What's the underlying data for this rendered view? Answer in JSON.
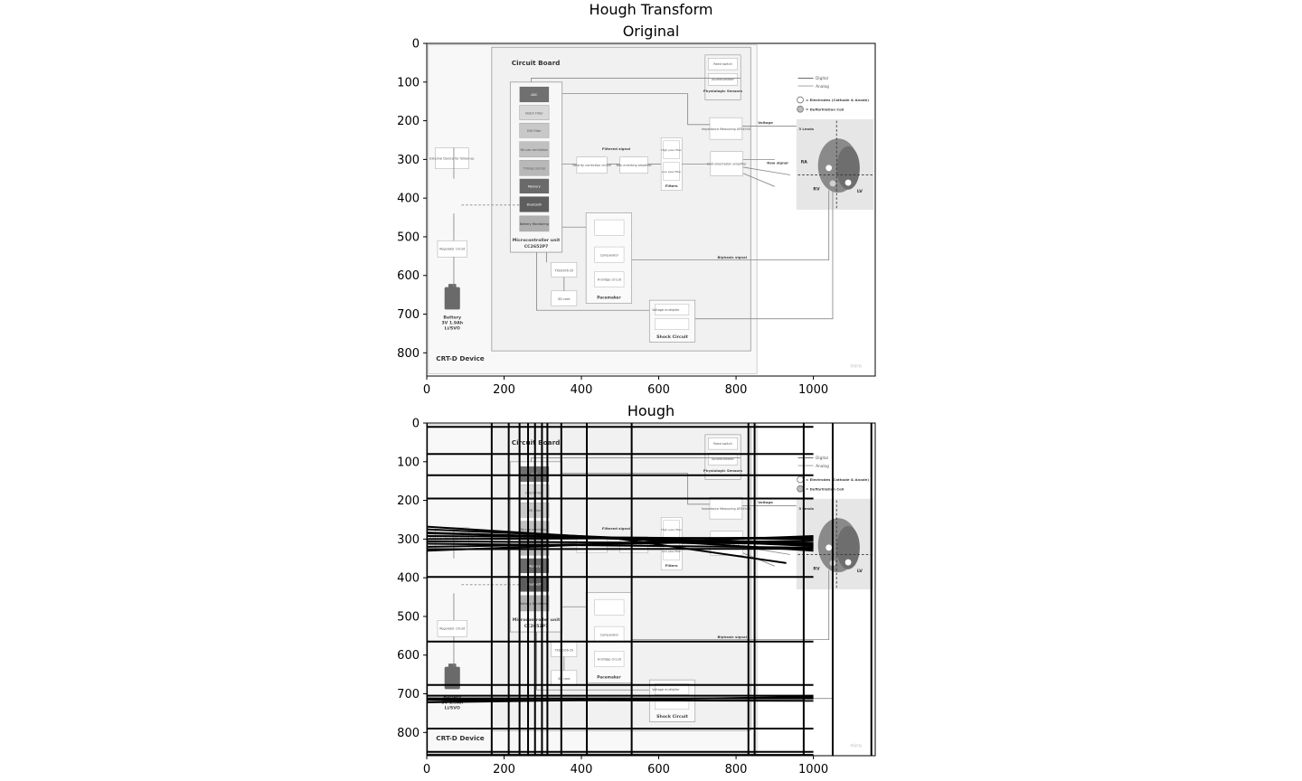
{
  "figure": {
    "suptitle": "Hough Transform"
  },
  "chart_data": [
    {
      "type": "image",
      "title": "Original",
      "xlim": [
        0,
        1160
      ],
      "ylim": [
        860,
        0
      ],
      "x_ticks": [
        0,
        200,
        400,
        600,
        800,
        1000
      ],
      "y_ticks": [
        0,
        100,
        200,
        300,
        400,
        500,
        600,
        700,
        800
      ],
      "image_text": {
        "circuit_board": "Circuit Board",
        "device": "CRT-D Device",
        "legend_digital": "Digital",
        "legend_analog": "Analog",
        "legend_electrodes": "= Electrodes (Cathode & Anode)",
        "legend_coil": "= Defibrillation Coil",
        "mcu_blocks": [
          "ADC",
          "Notch Filter",
          "EMI Filter",
          "Minute ventilation",
          "Timing control",
          "Memory",
          "Bluetooth",
          "Battery Monitoring"
        ],
        "mcu_label": "Microcontroller unit",
        "mcu_part": "CC2652P7",
        "reed_switch": "Reed switch",
        "accelerometer": "Accelerometer",
        "physiologic": "Physiologic Sensors",
        "impedance": "Impedance Measuring AFE4500",
        "voltage": "Voltage",
        "leads": "3 Leads",
        "filtered_signal": "Filtered signal",
        "high_pass": "High pass filter",
        "low_pass": "Low pass filter",
        "filters": "Filters",
        "polarity": "Polarity correction circuit",
        "non_inverting": "Non-inverting amplifier",
        "instrumentation": "Instrumentation amplifier",
        "raw_signal": "Raw signal",
        "external_device": "External Device for follow-up",
        "regulator": "Regulator circuit",
        "battery_title": "Battery",
        "battery_spec": "3V 1.9Ah",
        "battery_chem": "Li/SVO",
        "voltage_multiplier": "Voltage multiplier",
        "comparator": "Comparator",
        "h_bridge": "H-bridge circuit",
        "pacemaker": "Pacemaker",
        "txs": "TXS0206-29",
        "sd_card": "SD card",
        "biphasic": "Biphasic signal",
        "shock": "Shock Circuit",
        "ra": "RA",
        "rv": "RV",
        "lv": "LV",
        "watermark": "miro"
      }
    },
    {
      "type": "image",
      "title": "Hough",
      "xlim": [
        0,
        1160
      ],
      "ylim": [
        860,
        0
      ],
      "x_ticks": [
        0,
        200,
        400,
        600,
        800,
        1000
      ],
      "y_ticks": [
        0,
        100,
        200,
        300,
        400,
        500,
        600,
        700,
        800
      ],
      "vertical_lines_x": [
        0,
        168,
        212,
        240,
        262,
        280,
        298,
        312,
        348,
        414,
        530,
        832,
        848,
        975,
        1050,
        1150
      ],
      "horizontal_lines": [
        {
          "x": [
            0,
            1000
          ],
          "y": [
            10,
            10
          ]
        },
        {
          "x": [
            0,
            1000
          ],
          "y": [
            80,
            80
          ]
        },
        {
          "x": [
            0,
            1000
          ],
          "y": [
            135,
            135
          ]
        },
        {
          "x": [
            0,
            1000
          ],
          "y": [
            195,
            195
          ]
        },
        {
          "x": [
            0,
            1000
          ],
          "y": [
            398,
            398
          ]
        },
        {
          "x": [
            0,
            1000
          ],
          "y": [
            565,
            565
          ]
        },
        {
          "x": [
            0,
            1000
          ],
          "y": [
            677,
            677
          ]
        },
        {
          "x": [
            0,
            1000
          ],
          "y": [
            705,
            705
          ]
        },
        {
          "x": [
            0,
            1000
          ],
          "y": [
            712,
            712
          ]
        },
        {
          "x": [
            0,
            1000
          ],
          "y": [
            790,
            790
          ]
        },
        {
          "x": [
            0,
            1000
          ],
          "y": [
            850,
            850
          ]
        },
        {
          "x": [
            0,
            1000
          ],
          "y": [
            858,
            858
          ]
        }
      ],
      "oblique_lines": [
        {
          "x": [
            0,
            1000
          ],
          "y": [
            268,
            330
          ]
        },
        {
          "x": [
            0,
            1000
          ],
          "y": [
            275,
            318
          ]
        },
        {
          "x": [
            0,
            1000
          ],
          "y": [
            285,
            310
          ]
        },
        {
          "x": [
            0,
            1000
          ],
          "y": [
            292,
            300
          ]
        },
        {
          "x": [
            0,
            1000
          ],
          "y": [
            300,
            296
          ]
        },
        {
          "x": [
            0,
            1000
          ],
          "y": [
            306,
            312
          ]
        },
        {
          "x": [
            0,
            1000
          ],
          "y": [
            312,
            322
          ]
        },
        {
          "x": [
            0,
            1000
          ],
          "y": [
            320,
            304
          ]
        },
        {
          "x": [
            0,
            1000
          ],
          "y": [
            330,
            292
          ]
        },
        {
          "x": [
            0,
            1000
          ],
          "y": [
            326,
            325
          ]
        },
        {
          "x": [
            0,
            1000
          ],
          "y": [
            283,
            316
          ]
        },
        {
          "x": [
            500,
            930
          ],
          "y": [
            300,
            362
          ]
        },
        {
          "x": [
            0,
            1000
          ],
          "y": [
            722,
            708
          ]
        },
        {
          "x": [
            0,
            1000
          ],
          "y": [
            716,
            718
          ]
        }
      ]
    }
  ]
}
